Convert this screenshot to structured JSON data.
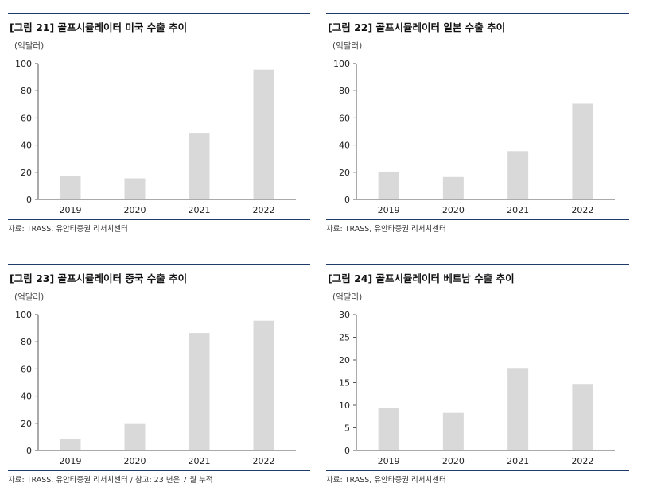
{
  "charts": [
    {
      "title": "[그림 21] 골프시뮬레이터 미국 수출 추이",
      "unit": "(억달러)",
      "source": "자료: TRASS, 유안타증권 리서치센터",
      "chart_data": {
        "type": "bar",
        "categories": [
          "2019",
          "2020",
          "2021",
          "2022"
        ],
        "values": [
          17.5,
          15.5,
          48.5,
          95.5
        ],
        "ylim": [
          0,
          100
        ],
        "yticks": [
          0,
          20,
          40,
          60,
          80,
          100
        ],
        "bar_color": "#d9d9d9",
        "grid": false
      }
    },
    {
      "title": "[그림 22] 골프시뮬레이터 일본 수출 추이",
      "unit": "(억달러)",
      "source": "자료: TRASS, 유안타증권 리서치센터",
      "chart_data": {
        "type": "bar",
        "categories": [
          "2019",
          "2020",
          "2021",
          "2022"
        ],
        "values": [
          20.5,
          16.5,
          35.5,
          70.5
        ],
        "ylim": [
          0,
          100
        ],
        "yticks": [
          0,
          20,
          40,
          60,
          80,
          100
        ],
        "bar_color": "#d9d9d9",
        "grid": false
      }
    },
    {
      "title": "[그림 23] 골프시뮬레이터 중국 수출 추이",
      "unit": "(억달러)",
      "source": "자료: TRASS, 유안타증권 리서치센터 / 참고: 23 년은 7 월 누적",
      "chart_data": {
        "type": "bar",
        "categories": [
          "2019",
          "2020",
          "2021",
          "2022"
        ],
        "values": [
          8.5,
          19.5,
          86.5,
          95.5
        ],
        "ylim": [
          0,
          100
        ],
        "yticks": [
          0,
          20,
          40,
          60,
          80,
          100
        ],
        "bar_color": "#d9d9d9",
        "grid": false
      }
    },
    {
      "title": "[그림 24] 골프시뮬레이터 베트남 수출 추이",
      "unit": "(억달러)",
      "source": "자료: TRASS, 유안타증권 리서치센터",
      "chart_data": {
        "type": "bar",
        "categories": [
          "2019",
          "2020",
          "2021",
          "2022"
        ],
        "values": [
          9.3,
          8.3,
          18.2,
          14.7
        ],
        "ylim": [
          0,
          30
        ],
        "yticks": [
          0,
          5,
          10,
          15,
          20,
          25,
          30
        ],
        "bar_color": "#d9d9d9",
        "grid": false
      }
    }
  ]
}
